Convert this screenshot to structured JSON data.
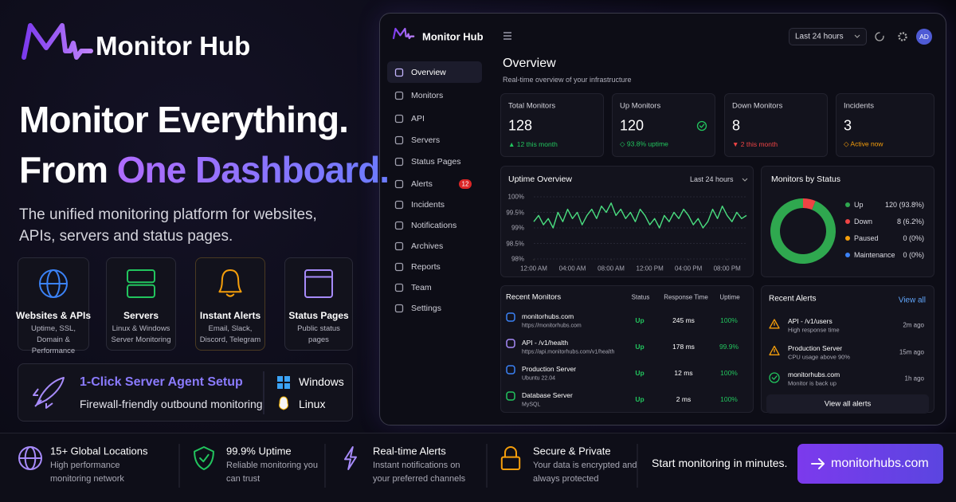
{
  "brand": {
    "name": "Monitor Hub"
  },
  "hero": {
    "line1": "Monitor Everything.",
    "line2_start": "From",
    "line2_highlight": "One Dashboard.",
    "subtitle": "The unified monitoring platform for websites, APIs, servers and status pages."
  },
  "features": [
    {
      "title": "Websites & APIs",
      "description": "Uptime, SSL, Domain & Performance"
    },
    {
      "title": "Servers",
      "description": "Linux & Windows Server Monitoring"
    },
    {
      "title": "Instant Alerts",
      "description": "Email, Slack, Discord, Telegram"
    },
    {
      "title": "Status Pages",
      "description": "Public status pages"
    }
  ],
  "agent": {
    "title": "1-Click Server Agent Setup",
    "description": "Firewall-friendly outbound monitoring",
    "platforms": [
      "Windows",
      "Linux"
    ]
  },
  "dashboard": {
    "app_name": "Monitor Hub",
    "time_range": "Last 24 hours",
    "avatar": "AD",
    "nav": [
      {
        "label": "Overview"
      },
      {
        "label": "Monitors"
      },
      {
        "label": "API"
      },
      {
        "label": "Servers"
      },
      {
        "label": "Status Pages"
      },
      {
        "label": "Alerts",
        "badge": 12
      },
      {
        "label": "Incidents"
      },
      {
        "label": "Notifications"
      },
      {
        "label": "Archives"
      },
      {
        "label": "Reports"
      },
      {
        "label": "Team"
      },
      {
        "label": "Settings"
      }
    ],
    "page_title": "Overview",
    "page_subtitle": "Real-time overview of your infrastructure",
    "stats": [
      {
        "label": "Total Monitors",
        "value": 128,
        "note": "▲ 12 this month"
      },
      {
        "label": "Up Monitors",
        "value": 120,
        "note": "◇ 93.8% uptime"
      },
      {
        "label": "Down Monitors",
        "value": 8,
        "note": "▼ 2 this month"
      },
      {
        "label": "Incidents",
        "value": 3,
        "note": "◇ Active now"
      }
    ],
    "uptime_chart": {
      "type": "line",
      "title": "Uptime Overview",
      "time_range": "Last 24 hours",
      "color": "#4ade80",
      "grid": true,
      "x": [
        0,
        0.5,
        1,
        1.5,
        2,
        2.5,
        3,
        3.5,
        4,
        4.5,
        5,
        5.5,
        6,
        6.5,
        7,
        7.5,
        8,
        8.5,
        9,
        9.5,
        10,
        10.5,
        11,
        11.5,
        12,
        12.5,
        13,
        13.5,
        14,
        14.5,
        15,
        15.5,
        16,
        16.5,
        17,
        17.5,
        18,
        18.5,
        19,
        19.5,
        20,
        20.5,
        21,
        21.5,
        22
      ],
      "values": [
        99.2,
        99.4,
        99.1,
        99.3,
        99.0,
        99.5,
        99.2,
        99.6,
        99.3,
        99.5,
        99.1,
        99.4,
        99.6,
        99.3,
        99.7,
        99.5,
        99.8,
        99.4,
        99.6,
        99.3,
        99.5,
        99.2,
        99.6,
        99.4,
        99.1,
        99.3,
        99.0,
        99.4,
        99.2,
        99.5,
        99.3,
        99.6,
        99.4,
        99.1,
        99.3,
        99.0,
        99.2,
        99.6,
        99.3,
        99.7,
        99.4,
        99.2,
        99.5,
        99.3,
        99.4
      ],
      "xlim": [
        0,
        22
      ],
      "ylim": [
        98,
        100
      ],
      "yticks": [
        {
          "value": 100,
          "label": "100%"
        },
        {
          "value": 99.5,
          "label": "99.5%"
        },
        {
          "value": 99,
          "label": "99%"
        },
        {
          "value": 98.5,
          "label": "98.5%"
        },
        {
          "value": 98,
          "label": "98%"
        }
      ],
      "xticks": [
        {
          "value": 0,
          "label": "12:00 AM"
        },
        {
          "value": 4,
          "label": "04:00 AM"
        },
        {
          "value": 8,
          "label": "08:00 AM"
        },
        {
          "value": 12,
          "label": "12:00 PM"
        },
        {
          "value": 16,
          "label": "04:00 PM"
        },
        {
          "value": 20,
          "label": "08:00 PM"
        }
      ]
    },
    "status_chart": {
      "type": "donut",
      "title": "Monitors by Status",
      "categories": [
        "Up",
        "Down",
        "Paused",
        "Maintenance"
      ],
      "values": [
        120,
        8,
        0,
        0
      ],
      "value_labels": [
        "120 (93.8%)",
        "8 (6.2%)",
        "0 (0%)",
        "0 (0%)"
      ],
      "colors": [
        "#2fa84f",
        "#ef4444",
        "#f59e0b",
        "#3b82f6"
      ]
    },
    "recent_monitors": {
      "title": "Recent Monitors",
      "columns": [
        "Status",
        "Response Time",
        "Uptime"
      ],
      "rows": [
        {
          "name": "monitorhubs.com",
          "detail": "https://monitorhubs.com",
          "status": "Up",
          "response_time": "245 ms",
          "uptime": "100%"
        },
        {
          "name": "API - /v1/health",
          "detail": "https://api.monitorhubs.com/v1/health",
          "status": "Up",
          "response_time": "178 ms",
          "uptime": "99.9%"
        },
        {
          "name": "Production Server",
          "detail": "Ubuntu 22.04",
          "status": "Up",
          "response_time": "12 ms",
          "uptime": "100%"
        },
        {
          "name": "Database Server",
          "detail": "MySQL",
          "status": "Up",
          "response_time": "2 ms",
          "uptime": "100%"
        }
      ]
    },
    "recent_alerts": {
      "title": "Recent Alerts",
      "link": "View all",
      "items": [
        {
          "title": "API - /v1/users",
          "description": "High response time",
          "time": "2m ago"
        },
        {
          "title": "Production Server",
          "description": "CPU usage above 90%",
          "time": "15m ago"
        },
        {
          "title": "monitorhubs.com",
          "description": "Monitor is back up",
          "time": "1h ago"
        }
      ],
      "button": "View all alerts"
    }
  },
  "footer": {
    "items": [
      {
        "title": "15+ Global Locations",
        "description": "High performance monitoring network"
      },
      {
        "title": "99.9% Uptime",
        "description": "Reliable monitoring you can trust"
      },
      {
        "title": "Real-time Alerts",
        "description": "Instant notifications on your preferred channels"
      },
      {
        "title": "Secure & Private",
        "description": "Your data is encrypted and always protected"
      }
    ],
    "cta_text": "Start monitoring in minutes.",
    "button": "monitorhubs.com"
  }
}
